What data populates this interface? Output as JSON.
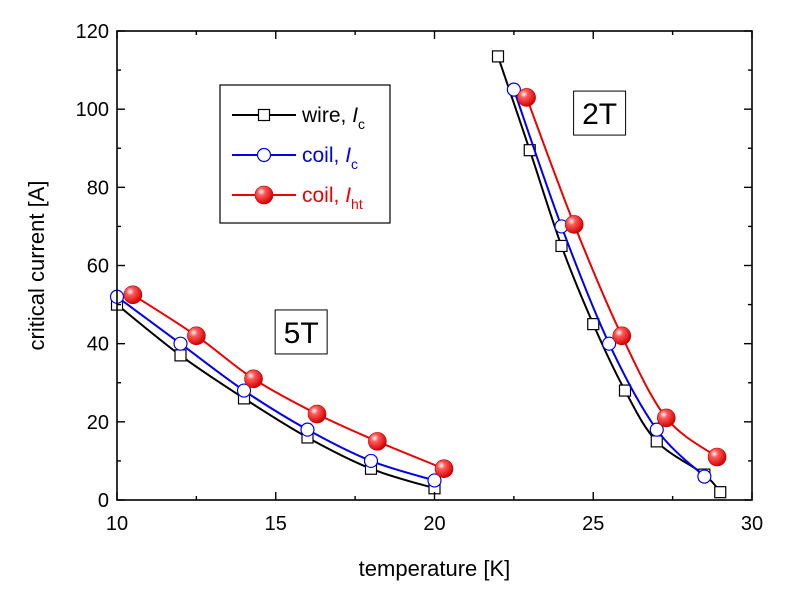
{
  "chart_data": {
    "type": "line",
    "title": "",
    "xlabel": "temperature [K]",
    "ylabel": "critical current [A]",
    "xlim": [
      10,
      30
    ],
    "ylim": [
      0,
      120
    ],
    "xticks": [
      10,
      15,
      20,
      25,
      30
    ],
    "yticks": [
      0,
      20,
      40,
      60,
      80,
      100,
      120
    ],
    "grid": false,
    "legend_position": "top-left",
    "series": [
      {
        "name": "wire, I_c",
        "legend_main": "wire, ",
        "legend_italic": "I",
        "legend_sub": "c",
        "color": "#000000",
        "marker": "open-square",
        "groups": [
          {
            "x": [
              10,
              12,
              14,
              16,
              18,
              20
            ],
            "y": [
              50,
              37,
              26,
              16,
              8,
              3
            ]
          },
          {
            "x": [
              22,
              23,
              24,
              25,
              26,
              27,
              28.5,
              29
            ],
            "y": [
              113.5,
              89.5,
              65,
              45,
              28,
              15,
              6.5,
              2
            ]
          }
        ]
      },
      {
        "name": "coil, I_c",
        "legend_main": "coil, ",
        "legend_italic": "I",
        "legend_sub": "c",
        "color": "#0000ee",
        "marker": "open-circle",
        "groups": [
          {
            "x": [
              10,
              12,
              14,
              16,
              18,
              20
            ],
            "y": [
              52,
              40,
              28,
              18,
              10,
              5
            ]
          },
          {
            "x": [
              22.5,
              24,
              25.5,
              27,
              28.5
            ],
            "y": [
              105,
              70,
              40,
              18,
              6
            ]
          }
        ]
      },
      {
        "name": "coil, I_ht",
        "legend_main": "coil, ",
        "legend_italic": "I",
        "legend_sub": "ht",
        "color": "#ee0000",
        "marker": "filled-circle",
        "groups": [
          {
            "x": [
              10.5,
              12.5,
              14.3,
              16.3,
              18.2,
              20.3
            ],
            "y": [
              52.5,
              42,
              31,
              22,
              15,
              8
            ]
          },
          {
            "x": [
              22.9,
              24.4,
              25.9,
              27.3,
              28.9
            ],
            "y": [
              103,
              70.5,
              42,
              21,
              11
            ]
          }
        ]
      }
    ],
    "annotations": [
      {
        "text": "5T",
        "x": 15.8,
        "y": 43
      },
      {
        "text": "2T",
        "x": 25.2,
        "y": 99
      }
    ]
  }
}
